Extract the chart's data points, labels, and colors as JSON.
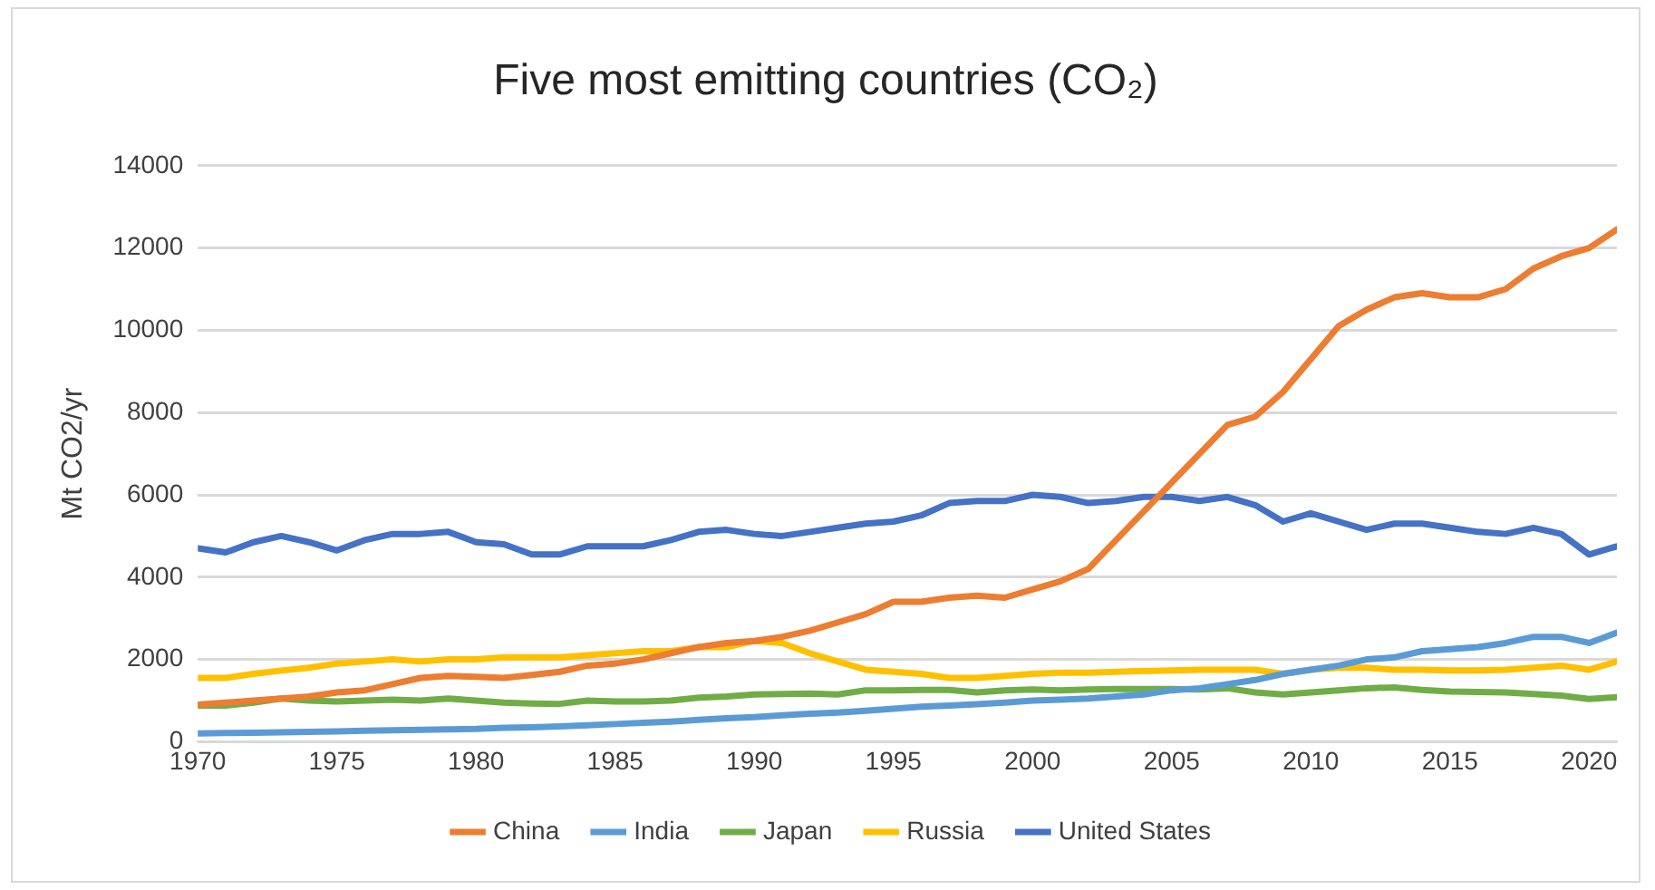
{
  "chart_data": {
    "type": "line",
    "title": "Five most emitting countries (CO₂)",
    "ylabel": "Mt CO2/yr",
    "x": [
      1970,
      1971,
      1972,
      1973,
      1974,
      1975,
      1976,
      1977,
      1978,
      1979,
      1980,
      1981,
      1982,
      1983,
      1984,
      1985,
      1986,
      1987,
      1988,
      1989,
      1990,
      1991,
      1992,
      1993,
      1994,
      1995,
      1996,
      1997,
      1998,
      1999,
      2000,
      2001,
      2002,
      2003,
      2004,
      2005,
      2006,
      2007,
      2008,
      2009,
      2010,
      2011,
      2012,
      2013,
      2014,
      2015,
      2016,
      2017,
      2018,
      2019,
      2020,
      2021
    ],
    "xlim": [
      1970,
      2021
    ],
    "xticks": [
      1970,
      1975,
      1980,
      1985,
      1990,
      1995,
      2000,
      2005,
      2010,
      2015,
      2020
    ],
    "ylim": [
      0,
      14000
    ],
    "yticks": [
      0,
      2000,
      4000,
      6000,
      8000,
      10000,
      12000,
      14000
    ],
    "grid": "y",
    "legend": "bottom",
    "marker": "none",
    "line_style": "solid",
    "series": [
      {
        "name": "China",
        "color": "#ed7d31",
        "values": [
          900,
          950,
          1000,
          1050,
          1100,
          1200,
          1250,
          1400,
          1550,
          1600,
          1580,
          1550,
          1620,
          1700,
          1850,
          1900,
          2000,
          2150,
          2300,
          2400,
          2450,
          2550,
          2700,
          2900,
          3100,
          3400,
          3400,
          3500,
          3550,
          3500,
          3700,
          3900,
          4200,
          4900,
          5600,
          6300,
          7000,
          7700,
          7900,
          8500,
          9300,
          10100,
          10500,
          10800,
          10900,
          10800,
          10800,
          11000,
          11500,
          11800,
          12000,
          12450
        ]
      },
      {
        "name": "India",
        "color": "#5b9bd5",
        "values": [
          200,
          210,
          220,
          230,
          240,
          250,
          270,
          280,
          290,
          300,
          310,
          340,
          350,
          370,
          400,
          430,
          460,
          490,
          530,
          570,
          600,
          640,
          680,
          710,
          750,
          800,
          850,
          880,
          910,
          950,
          1000,
          1020,
          1050,
          1100,
          1150,
          1250,
          1300,
          1400,
          1500,
          1650,
          1750,
          1850,
          2000,
          2050,
          2200,
          2250,
          2300,
          2400,
          2550,
          2550,
          2400,
          2650
        ]
      },
      {
        "name": "Japan",
        "color": "#70ad47",
        "values": [
          880,
          880,
          950,
          1050,
          1000,
          980,
          1000,
          1020,
          1000,
          1050,
          1000,
          950,
          930,
          920,
          1000,
          980,
          980,
          1000,
          1070,
          1100,
          1150,
          1160,
          1170,
          1150,
          1250,
          1250,
          1260,
          1260,
          1200,
          1250,
          1270,
          1250,
          1270,
          1280,
          1280,
          1280,
          1270,
          1300,
          1200,
          1150,
          1200,
          1250,
          1300,
          1320,
          1260,
          1220,
          1210,
          1200,
          1160,
          1120,
          1040,
          1080
        ]
      },
      {
        "name": "Russia",
        "color": "#ffc000",
        "values": [
          1550,
          1550,
          1650,
          1730,
          1800,
          1900,
          1950,
          2000,
          1950,
          2000,
          2000,
          2050,
          2050,
          2050,
          2100,
          2150,
          2200,
          2200,
          2300,
          2300,
          2450,
          2400,
          2150,
          1950,
          1750,
          1700,
          1650,
          1550,
          1550,
          1600,
          1650,
          1680,
          1680,
          1700,
          1720,
          1730,
          1750,
          1750,
          1750,
          1650,
          1750,
          1800,
          1800,
          1750,
          1750,
          1730,
          1730,
          1750,
          1800,
          1850,
          1750,
          1950
        ]
      },
      {
        "name": "United States",
        "color": "#4472c4",
        "values": [
          4700,
          4600,
          4850,
          5000,
          4850,
          4650,
          4900,
          5050,
          5050,
          5100,
          4850,
          4800,
          4550,
          4550,
          4750,
          4750,
          4750,
          4900,
          5100,
          5150,
          5050,
          5000,
          5100,
          5200,
          5300,
          5350,
          5500,
          5800,
          5850,
          5850,
          6000,
          5950,
          5800,
          5850,
          5950,
          5950,
          5850,
          5950,
          5750,
          5350,
          5550,
          5350,
          5150,
          5300,
          5300,
          5200,
          5100,
          5050,
          5200,
          5050,
          4550,
          4750
        ]
      }
    ]
  }
}
